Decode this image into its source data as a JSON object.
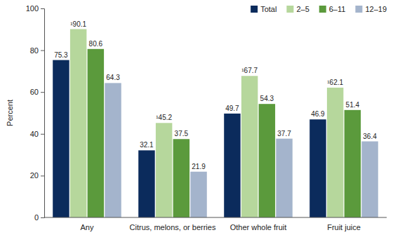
{
  "chart_data": {
    "type": "bar",
    "y_label": "Percent",
    "categories": [
      "Any",
      "Citrus, melons, or berries",
      "Other whole fruit",
      "Fruit juice"
    ],
    "series": [
      {
        "name": "Total",
        "color": "#0b2b5c",
        "values": [
          75.3,
          32.1,
          49.7,
          46.9
        ]
      },
      {
        "name": "2–5",
        "color": "#b6d79c",
        "values": [
          90.1,
          45.2,
          67.7,
          62.1
        ],
        "value_labels": [
          "¹90.1",
          "¹45.2",
          "¹67.7",
          "¹62.1"
        ]
      },
      {
        "name": "6–11",
        "color": "#5b9a3c",
        "values": [
          80.6,
          37.5,
          54.3,
          51.4
        ]
      },
      {
        "name": "12–19",
        "color": "#a4b4cc",
        "values": [
          64.3,
          21.9,
          37.7,
          36.4
        ]
      }
    ],
    "ylim": [
      0,
      100
    ],
    "yticks": [
      0,
      20,
      40,
      60,
      80,
      100
    ],
    "data_labels": true,
    "legend": "top-right",
    "grid": false
  }
}
